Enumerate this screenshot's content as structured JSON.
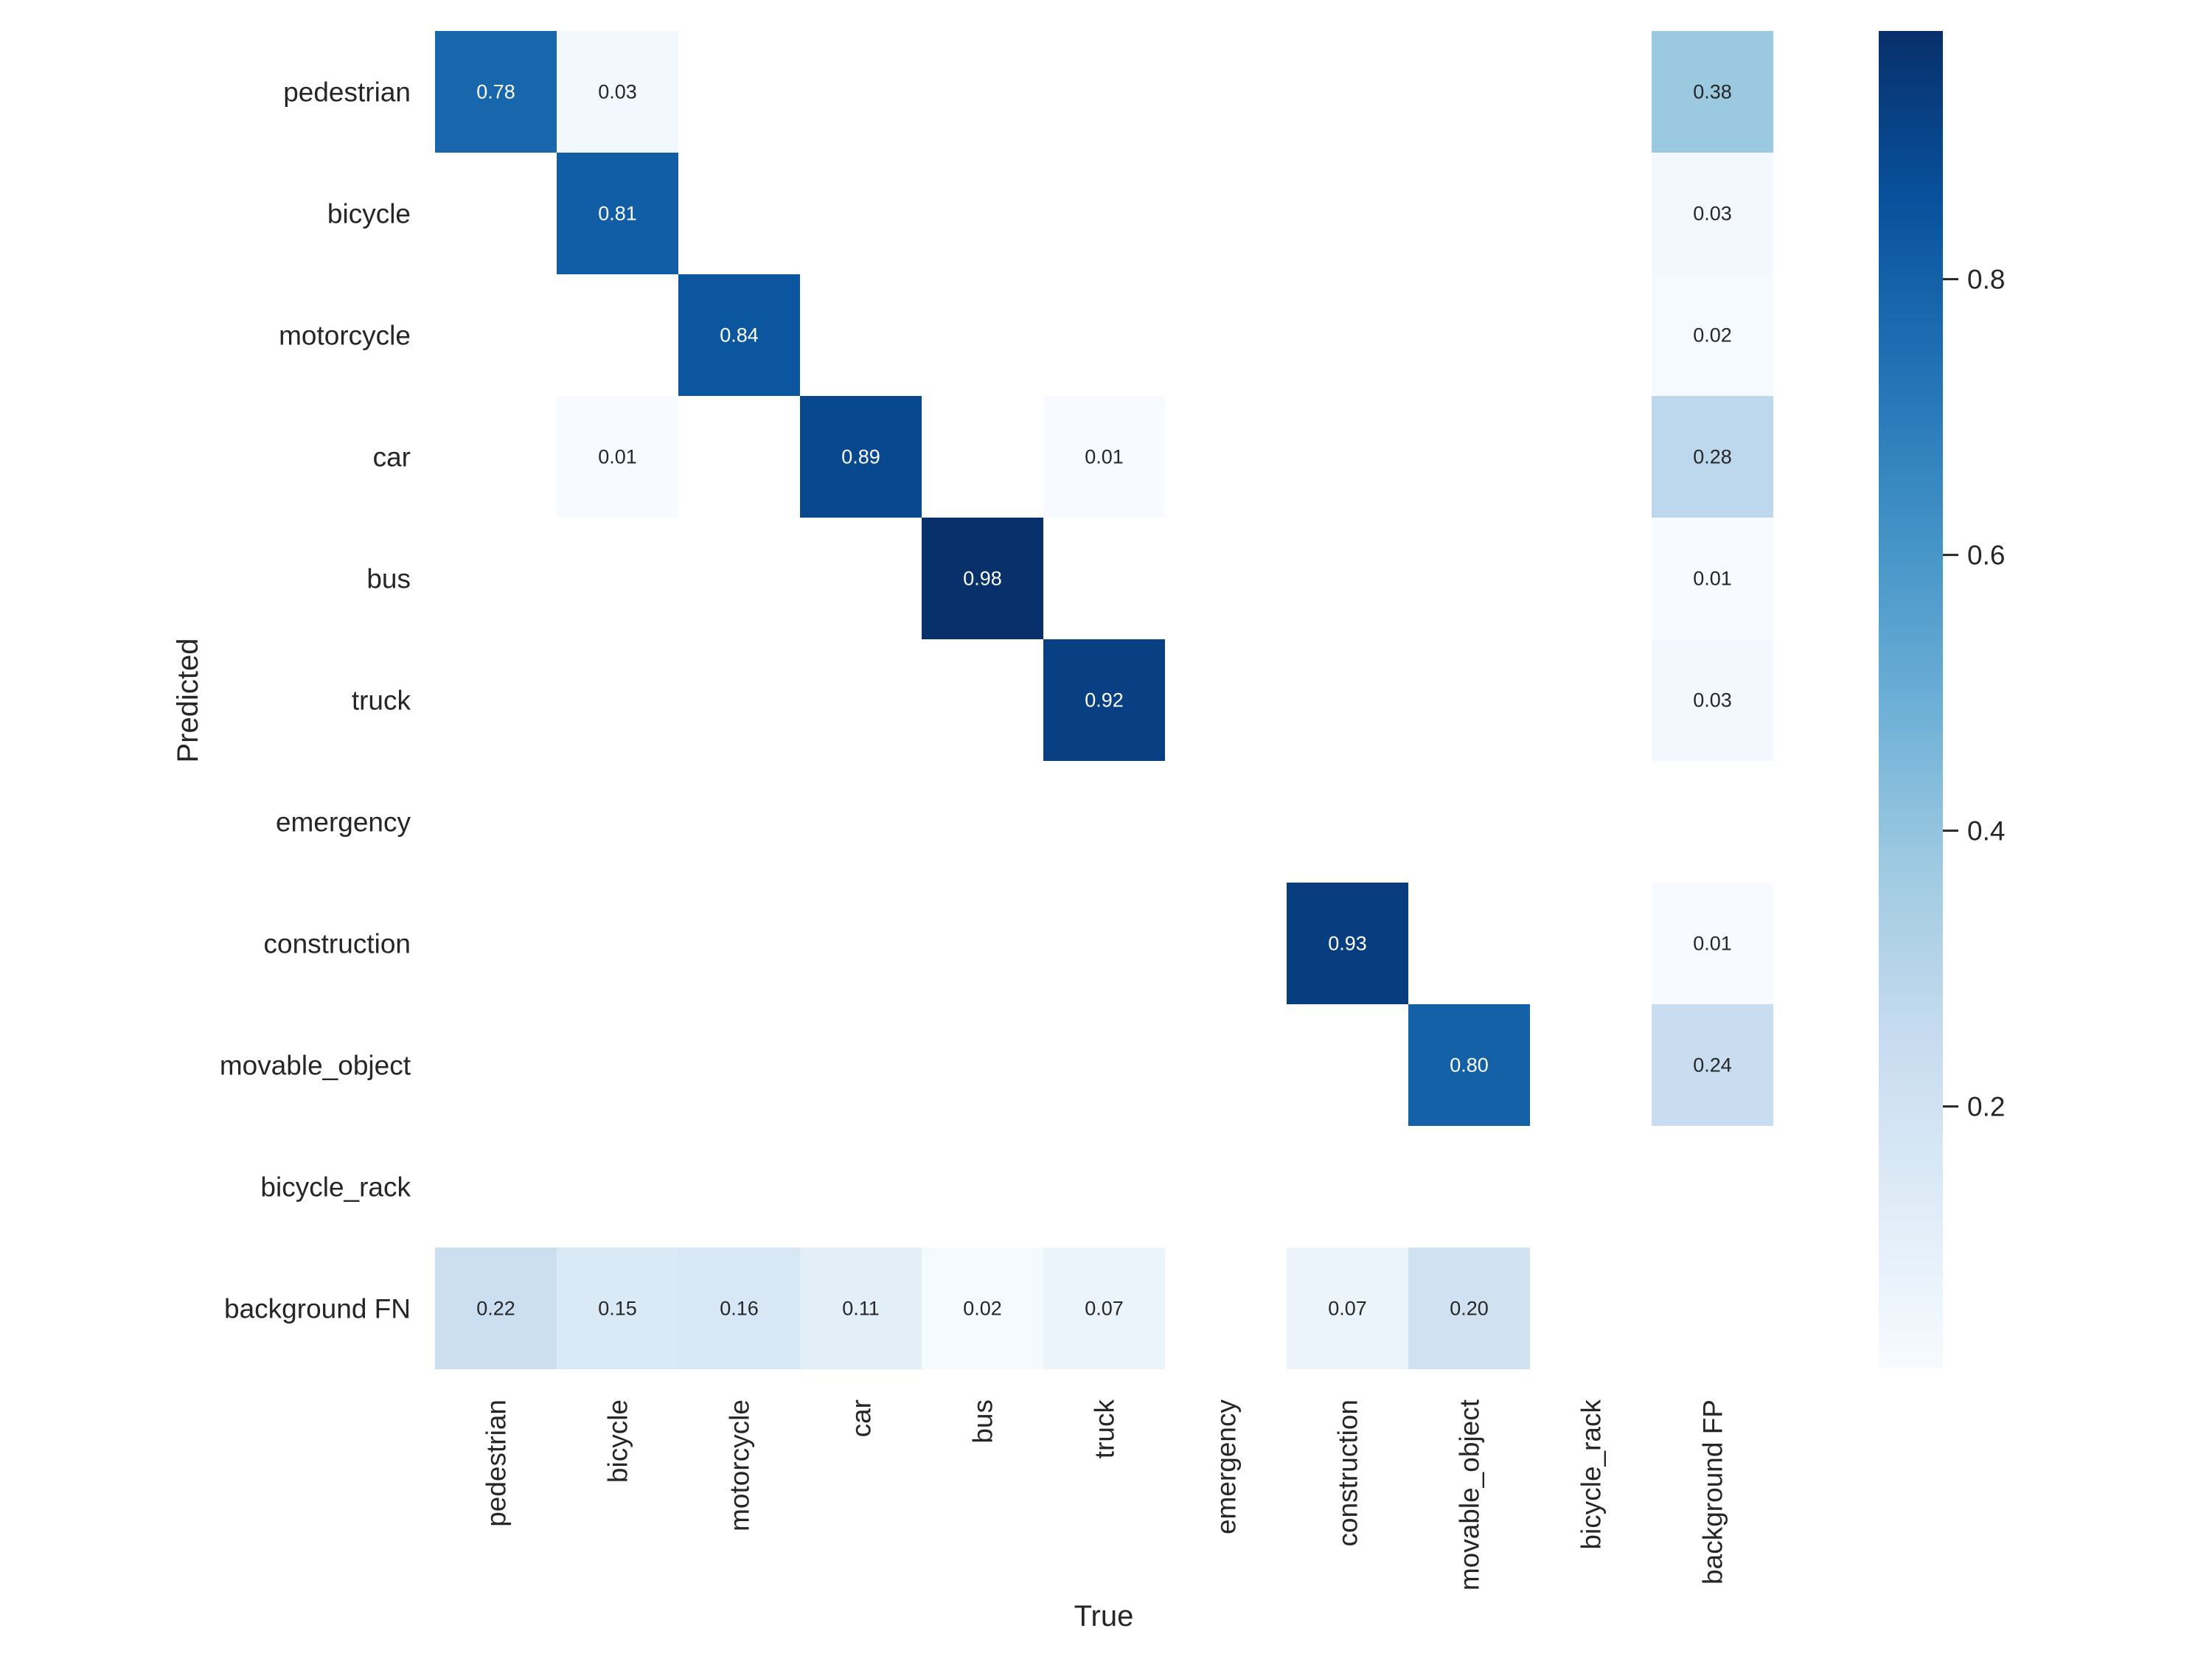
{
  "chart_data": {
    "type": "heatmap",
    "title": "",
    "xlabel": "True",
    "ylabel": "Predicted",
    "x_categories": [
      "pedestrian",
      "bicycle",
      "motorcycle",
      "car",
      "bus",
      "truck",
      "emergency",
      "construction",
      "movable_object",
      "bicycle_rack",
      "background FP"
    ],
    "y_categories": [
      "pedestrian",
      "bicycle",
      "motorcycle",
      "car",
      "bus",
      "truck",
      "emergency",
      "construction",
      "movable_object",
      "bicycle_rack",
      "background FN"
    ],
    "values": [
      [
        0.78,
        0.03,
        null,
        null,
        null,
        null,
        null,
        null,
        null,
        null,
        0.38
      ],
      [
        null,
        0.81,
        null,
        null,
        null,
        null,
        null,
        null,
        null,
        null,
        0.03
      ],
      [
        null,
        null,
        0.84,
        null,
        null,
        null,
        null,
        null,
        null,
        null,
        0.02
      ],
      [
        null,
        0.01,
        null,
        0.89,
        null,
        0.01,
        null,
        null,
        null,
        null,
        0.28
      ],
      [
        null,
        null,
        null,
        null,
        0.98,
        null,
        null,
        null,
        null,
        null,
        0.01
      ],
      [
        null,
        null,
        null,
        null,
        null,
        0.92,
        null,
        null,
        null,
        null,
        0.03
      ],
      [
        null,
        null,
        null,
        null,
        null,
        null,
        null,
        null,
        null,
        null,
        null
      ],
      [
        null,
        null,
        null,
        null,
        null,
        null,
        null,
        0.93,
        null,
        null,
        0.01
      ],
      [
        null,
        null,
        null,
        null,
        null,
        null,
        null,
        null,
        0.8,
        null,
        0.24
      ],
      [
        null,
        null,
        null,
        null,
        null,
        null,
        null,
        null,
        null,
        null,
        null
      ],
      [
        0.22,
        0.15,
        0.16,
        0.11,
        0.02,
        0.07,
        null,
        0.07,
        0.2,
        null,
        null
      ]
    ],
    "colormap": "Blues",
    "colorbar": {
      "range": [
        0.01,
        0.98
      ],
      "ticks": [
        0.2,
        0.4,
        0.6,
        0.8
      ],
      "tick_labels": [
        "0.2",
        "0.4",
        "0.6",
        "0.8"
      ]
    },
    "annotation_text_colors": {
      "dark": "#262626",
      "light": "#ffffff"
    },
    "grid": false
  }
}
